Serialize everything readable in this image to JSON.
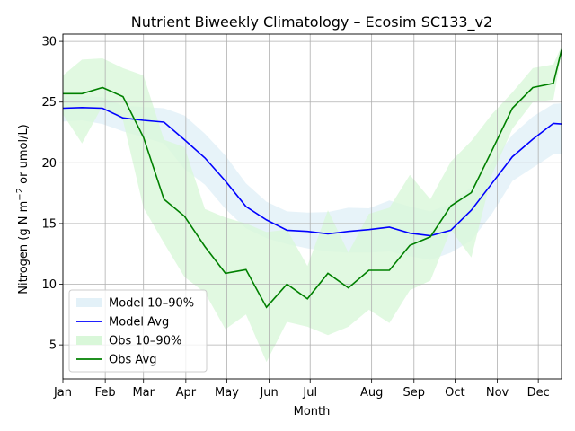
{
  "chart_data": {
    "type": "line",
    "title": "Nutrient Biweekly Climatology – Ecosim SC133_v2",
    "xlabel": "Month",
    "ylabel": "Nitrogen (g N m⁻² or umol/L)",
    "xlim": [
      1,
      366
    ],
    "ylim": [
      2.2,
      30.6
    ],
    "yticks": [
      5,
      10,
      15,
      20,
      25,
      30
    ],
    "xticks": [
      {
        "label": "Jan",
        "day": 1
      },
      {
        "label": "Feb",
        "day": 32
      },
      {
        "label": "Mar",
        "day": 60
      },
      {
        "label": "Apr",
        "day": 91
      },
      {
        "label": "May",
        "day": 121
      },
      {
        "label": "Jun",
        "day": 152
      },
      {
        "label": "Jul",
        "day": 182
      },
      {
        "label": "Aug",
        "day": 227
      },
      {
        "label": "Sep",
        "day": 258
      },
      {
        "label": "Oct",
        "day": 288
      },
      {
        "label": "Nov",
        "day": 319
      },
      {
        "label": "Dec",
        "day": 349
      }
    ],
    "grid": true,
    "legend_position": "lower-left",
    "colors": {
      "model_line": "#0000ff",
      "model_band": "#e3f1f8",
      "obs_line": "#008000",
      "obs_band": "#d9f7d9"
    },
    "x_days": [
      1,
      15,
      30,
      45,
      60,
      75,
      90,
      105,
      120,
      135,
      150,
      165,
      180,
      195,
      210,
      225,
      240,
      255,
      270,
      285,
      300,
      315,
      330,
      345,
      360,
      366
    ],
    "series": [
      {
        "name": "Model Avg",
        "kind": "line",
        "values": [
          24.5,
          24.55,
          24.5,
          23.7,
          23.5,
          23.35,
          21.9,
          20.4,
          18.5,
          16.4,
          15.3,
          14.45,
          14.35,
          14.15,
          14.35,
          14.5,
          14.7,
          14.2,
          14.0,
          14.45,
          16.1,
          18.3,
          20.5,
          21.95,
          23.25,
          23.2
        ]
      },
      {
        "name": "Model 10–90%",
        "kind": "band",
        "upper": [
          25.5,
          25.5,
          25.4,
          24.7,
          24.6,
          24.5,
          23.9,
          22.4,
          20.6,
          18.3,
          16.8,
          16.0,
          15.9,
          15.95,
          16.3,
          16.25,
          16.9,
          16.4,
          16.0,
          16.6,
          18.0,
          20.0,
          22.3,
          23.8,
          24.85,
          24.9
        ]
      },
      {
        "name": "Model 10–90%",
        "kind": "band-lower",
        "lower": [
          23.4,
          23.5,
          23.2,
          22.6,
          22.1,
          21.6,
          19.5,
          18.2,
          16.2,
          14.6,
          13.8,
          13.3,
          12.95,
          12.7,
          12.6,
          12.6,
          12.7,
          12.3,
          12.0,
          12.6,
          13.6,
          15.8,
          18.5,
          19.6,
          20.7,
          20.75
        ]
      },
      {
        "name": "Obs Avg",
        "kind": "line",
        "values": [
          25.7,
          25.7,
          26.2,
          25.45,
          22.1,
          17.0,
          15.6,
          13.1,
          10.9,
          11.2,
          8.1,
          10.0,
          8.8,
          10.9,
          9.7,
          11.15,
          11.15,
          13.2,
          13.9,
          16.45,
          17.55,
          21.0,
          24.5,
          26.2,
          26.55,
          29.3
        ]
      },
      {
        "name": "Obs 10–90%",
        "kind": "band",
        "upper": [
          27.2,
          28.5,
          28.6,
          27.8,
          27.2,
          21.9,
          21.3,
          16.2,
          15.5,
          15.0,
          14.3,
          14.5,
          11.5,
          16.1,
          12.6,
          15.8,
          16.3,
          19.0,
          17.0,
          20.1,
          21.8,
          24.0,
          25.8,
          27.8,
          28.1,
          29.6
        ]
      },
      {
        "name": "Obs 10–90%",
        "kind": "band-lower",
        "lower": [
          24.0,
          21.6,
          24.7,
          23.5,
          16.3,
          13.4,
          10.6,
          9.3,
          6.3,
          7.5,
          3.6,
          6.9,
          6.5,
          5.8,
          6.5,
          7.9,
          6.8,
          9.5,
          10.3,
          14.5,
          12.2,
          19.0,
          22.8,
          25.0,
          25.2,
          29.0
        ]
      }
    ],
    "legend": [
      {
        "label": "Model 10–90%",
        "style": "band",
        "color": "#e3f1f8"
      },
      {
        "label": "Model Avg",
        "style": "line",
        "color": "#0000ff"
      },
      {
        "label": "Obs 10–90%",
        "style": "band",
        "color": "#d9f7d9"
      },
      {
        "label": "Obs Avg",
        "style": "line",
        "color": "#008000"
      }
    ]
  }
}
